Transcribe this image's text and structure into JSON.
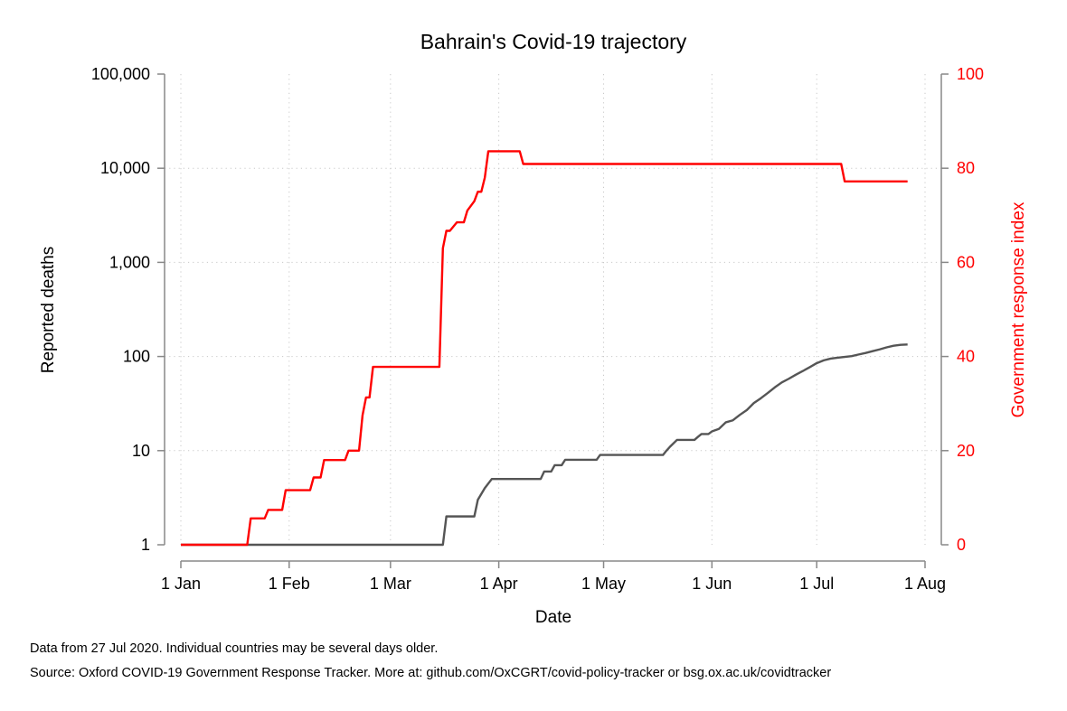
{
  "chart_data": {
    "type": "line",
    "title": "Bahrain's Covid-19 trajectory",
    "xlabel": "Date",
    "ylabel_left": "Reported deaths",
    "ylabel_right": "Government response index",
    "x_ticks": [
      "1 Jan",
      "1 Feb",
      "1 Mar",
      "1 Apr",
      "1 May",
      "1 Jun",
      "1 Jul",
      "1 Aug"
    ],
    "x_range": [
      "2020-01-01",
      "2020-08-01"
    ],
    "y_left": {
      "scale": "log",
      "range": [
        1,
        100000
      ],
      "ticks": [
        "1",
        "10",
        "100",
        "1,000",
        "10,000",
        "100,000"
      ]
    },
    "y_right": {
      "scale": "linear",
      "range": [
        0,
        100
      ],
      "ticks": [
        "0",
        "20",
        "40",
        "60",
        "80",
        "100"
      ]
    },
    "grid": true,
    "colors": {
      "deaths": "#555555",
      "response": "#ff0000",
      "axis": "#888888"
    },
    "series": [
      {
        "axis": "left",
        "color": "#555555",
        "points": [
          [
            "2020-01-01",
            1
          ],
          [
            "2020-03-16",
            1
          ],
          [
            "2020-03-17",
            2
          ],
          [
            "2020-03-25",
            2
          ],
          [
            "2020-03-26",
            3
          ],
          [
            "2020-03-28",
            4
          ],
          [
            "2020-03-30",
            5
          ],
          [
            "2020-04-06",
            5
          ],
          [
            "2020-04-13",
            5
          ],
          [
            "2020-04-14",
            6
          ],
          [
            "2020-04-16",
            6
          ],
          [
            "2020-04-17",
            7
          ],
          [
            "2020-04-19",
            7
          ],
          [
            "2020-04-20",
            8
          ],
          [
            "2020-04-29",
            8
          ],
          [
            "2020-04-30",
            9
          ],
          [
            "2020-05-18",
            9
          ],
          [
            "2020-05-19",
            10
          ],
          [
            "2020-05-20",
            11
          ],
          [
            "2020-05-22",
            13
          ],
          [
            "2020-05-27",
            13
          ],
          [
            "2020-05-28",
            14
          ],
          [
            "2020-05-29",
            15
          ],
          [
            "2020-05-31",
            15
          ],
          [
            "2020-06-01",
            16
          ],
          [
            "2020-06-03",
            17
          ],
          [
            "2020-06-05",
            20
          ],
          [
            "2020-06-07",
            21
          ],
          [
            "2020-06-09",
            24
          ],
          [
            "2020-06-11",
            27
          ],
          [
            "2020-06-13",
            32
          ],
          [
            "2020-06-15",
            36
          ],
          [
            "2020-06-17",
            41
          ],
          [
            "2020-06-19",
            47
          ],
          [
            "2020-06-21",
            53
          ],
          [
            "2020-06-23",
            58
          ],
          [
            "2020-06-25",
            64
          ],
          [
            "2020-06-27",
            70
          ],
          [
            "2020-06-29",
            77
          ],
          [
            "2020-07-01",
            85
          ],
          [
            "2020-07-03",
            91
          ],
          [
            "2020-07-05",
            95
          ],
          [
            "2020-07-07",
            97
          ],
          [
            "2020-07-09",
            99
          ],
          [
            "2020-07-11",
            101
          ],
          [
            "2020-07-13",
            105
          ],
          [
            "2020-07-15",
            109
          ],
          [
            "2020-07-17",
            114
          ],
          [
            "2020-07-19",
            119
          ],
          [
            "2020-07-21",
            125
          ],
          [
            "2020-07-23",
            130
          ],
          [
            "2020-07-25",
            133
          ],
          [
            "2020-07-27",
            134
          ]
        ]
      },
      {
        "axis": "right",
        "color": "#ff0000",
        "points": [
          [
            "2020-01-01",
            0
          ],
          [
            "2020-01-20",
            0
          ],
          [
            "2020-01-21",
            5.6
          ],
          [
            "2020-01-25",
            5.6
          ],
          [
            "2020-01-26",
            7.4
          ],
          [
            "2020-01-30",
            7.4
          ],
          [
            "2020-01-31",
            11.6
          ],
          [
            "2020-02-07",
            11.6
          ],
          [
            "2020-02-08",
            14.3
          ],
          [
            "2020-02-10",
            14.3
          ],
          [
            "2020-02-11",
            18
          ],
          [
            "2020-02-17",
            18
          ],
          [
            "2020-02-18",
            20
          ],
          [
            "2020-02-21",
            20
          ],
          [
            "2020-02-22",
            27.5
          ],
          [
            "2020-02-23",
            31.3
          ],
          [
            "2020-02-24",
            31.3
          ],
          [
            "2020-02-25",
            37.8
          ],
          [
            "2020-03-15",
            37.8
          ],
          [
            "2020-03-16",
            63
          ],
          [
            "2020-03-17",
            66.7
          ],
          [
            "2020-03-18",
            66.7
          ],
          [
            "2020-03-20",
            68.5
          ],
          [
            "2020-03-22",
            68.5
          ],
          [
            "2020-03-23",
            71
          ],
          [
            "2020-03-25",
            73
          ],
          [
            "2020-03-26",
            75
          ],
          [
            "2020-03-27",
            75
          ],
          [
            "2020-03-28",
            78
          ],
          [
            "2020-03-29",
            83.6
          ],
          [
            "2020-04-07",
            83.6
          ],
          [
            "2020-04-08",
            80.9
          ],
          [
            "2020-07-08",
            80.9
          ],
          [
            "2020-07-09",
            77.2
          ],
          [
            "2020-07-27",
            77.2
          ]
        ]
      }
    ]
  },
  "footnotes": {
    "line1": "Data from 27 Jul 2020. Individual countries may be several days older.",
    "line2": "Source: Oxford COVID-19 Government Response Tracker. More at: github.com/OxCGRT/covid-policy-tracker or bsg.ox.ac.uk/covidtracker"
  }
}
